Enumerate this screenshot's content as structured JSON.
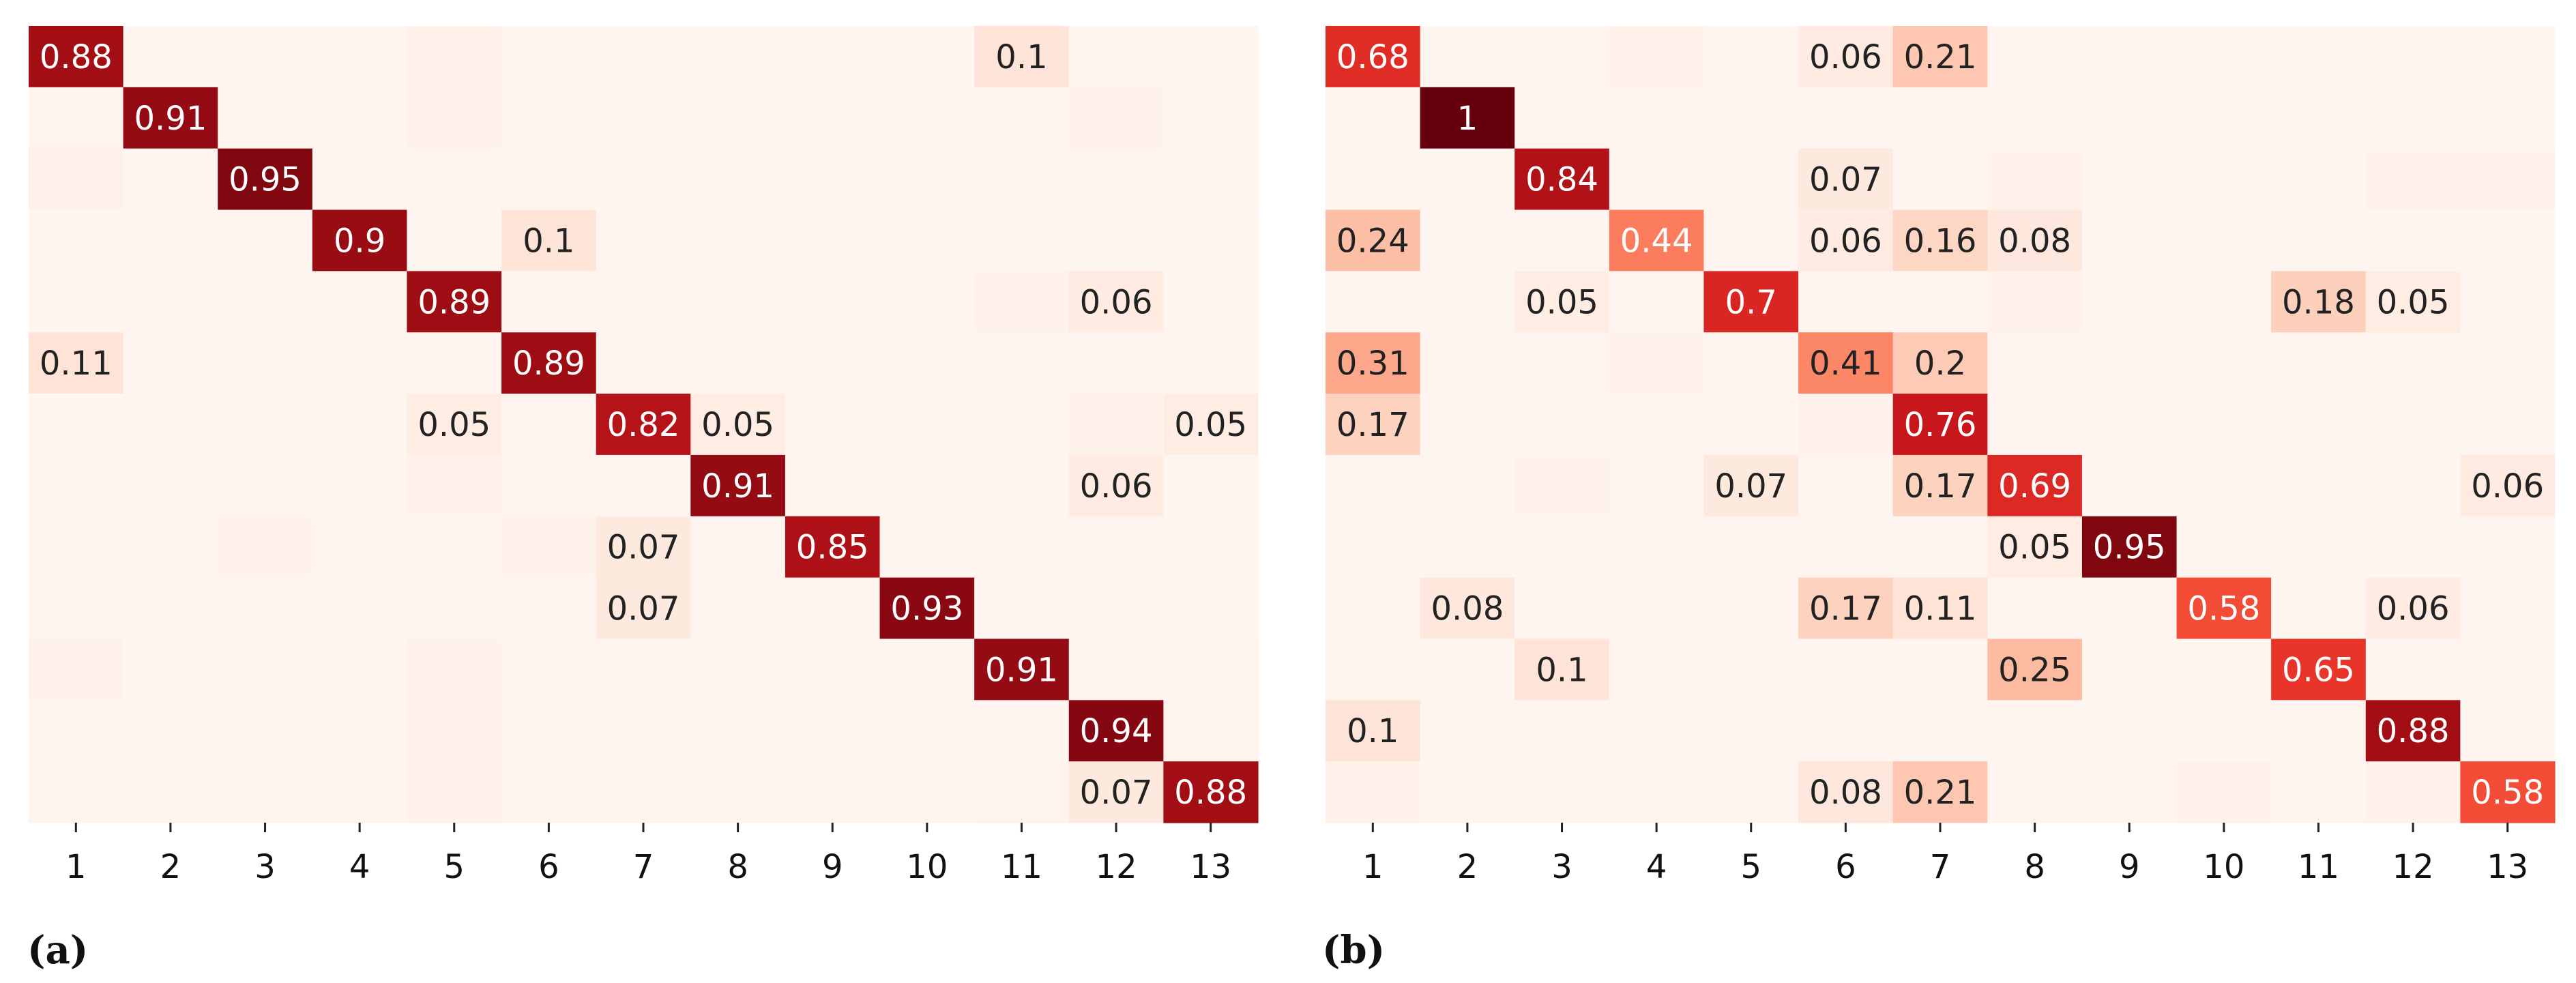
{
  "chart_data": [
    {
      "type": "heatmap",
      "panel_label": "(a)",
      "categories": [
        "1",
        "2",
        "3",
        "4",
        "5",
        "6",
        "7",
        "8",
        "9",
        "10",
        "11",
        "12",
        "13"
      ],
      "colormap": "Reds",
      "vmin": 0,
      "vmax": 1,
      "annotate_min": 0.05,
      "matrix": [
        [
          0.88,
          0,
          0,
          0,
          0.02,
          0,
          0,
          0,
          0,
          0,
          0.1,
          0,
          0
        ],
        [
          0.01,
          0.91,
          0,
          0,
          0.02,
          0,
          0.01,
          0.01,
          0,
          0,
          0,
          0.02,
          0
        ],
        [
          0.03,
          0,
          0.95,
          0,
          0,
          0,
          0,
          0,
          0,
          0,
          0,
          0,
          0
        ],
        [
          0,
          0,
          0,
          0.9,
          0,
          0.1,
          0,
          0,
          0,
          0,
          0,
          0,
          0
        ],
        [
          0,
          0,
          0,
          0,
          0.89,
          0,
          0,
          0,
          0,
          0,
          0.02,
          0.06,
          0
        ],
        [
          0.11,
          0,
          0,
          0,
          0,
          0.89,
          0,
          0,
          0,
          0,
          0,
          0,
          0
        ],
        [
          0,
          0,
          0,
          0,
          0.05,
          0,
          0.82,
          0.05,
          0,
          0,
          0,
          0.02,
          0.05
        ],
        [
          0,
          0,
          0,
          0,
          0.02,
          0,
          0,
          0.91,
          0,
          0,
          0,
          0.06,
          0
        ],
        [
          0,
          0,
          0.02,
          0,
          0,
          0.02,
          0.07,
          0,
          0.85,
          0,
          0,
          0,
          0
        ],
        [
          0,
          0,
          0,
          0,
          0,
          0,
          0.07,
          0,
          0,
          0.93,
          0,
          0,
          0
        ],
        [
          0.02,
          0,
          0,
          0,
          0.02,
          0,
          0,
          0,
          0,
          0,
          0.91,
          0,
          0.01
        ],
        [
          0,
          0,
          0,
          0,
          0.02,
          0,
          0,
          0,
          0,
          0,
          0,
          0.94,
          0.01
        ],
        [
          0,
          0,
          0,
          0,
          0.02,
          0,
          0,
          0,
          0,
          0,
          0.01,
          0.07,
          0.88
        ]
      ]
    },
    {
      "type": "heatmap",
      "panel_label": "(b)",
      "categories": [
        "1",
        "2",
        "3",
        "4",
        "5",
        "6",
        "7",
        "8",
        "9",
        "10",
        "11",
        "12",
        "13"
      ],
      "colormap": "Reds",
      "vmin": 0,
      "vmax": 1,
      "annotate_min": 0.05,
      "matrix": [
        [
          0.68,
          0,
          0,
          0.02,
          0,
          0.06,
          0.21,
          0,
          0,
          0,
          0,
          0,
          0
        ],
        [
          0,
          1.0,
          0,
          0,
          0,
          0,
          0,
          0,
          0,
          0,
          0,
          0,
          0
        ],
        [
          0,
          0,
          0.84,
          0,
          0,
          0.07,
          0,
          0.02,
          0,
          0,
          0,
          0.02,
          0.02
        ],
        [
          0.24,
          0,
          0,
          0.44,
          0,
          0.06,
          0.16,
          0.08,
          0,
          0,
          0,
          0,
          0
        ],
        [
          0,
          0,
          0.05,
          0,
          0.7,
          0,
          0,
          0.02,
          0,
          0,
          0.18,
          0.05,
          0
        ],
        [
          0.31,
          0,
          0,
          0.02,
          0,
          0.41,
          0.2,
          0,
          0,
          0,
          0.01,
          0.01,
          0
        ],
        [
          0.17,
          0,
          0,
          0.01,
          0,
          0.02,
          0.76,
          0,
          0,
          0,
          0,
          0,
          0
        ],
        [
          0,
          0,
          0.02,
          0,
          0.07,
          0,
          0.17,
          0.69,
          0,
          0,
          0,
          0,
          0.06
        ],
        [
          0,
          0,
          0,
          0,
          0,
          0,
          0,
          0.05,
          0.95,
          0,
          0,
          0,
          0
        ],
        [
          0,
          0.08,
          0,
          0,
          0,
          0.17,
          0.11,
          0,
          0,
          0.58,
          0,
          0.06,
          0
        ],
        [
          0,
          0,
          0.1,
          0,
          0,
          0,
          0,
          0.25,
          0,
          0,
          0.65,
          0,
          0
        ],
        [
          0.1,
          0,
          0,
          0,
          0,
          0,
          0,
          0,
          0,
          0,
          0,
          0.88,
          0
        ],
        [
          0.02,
          0,
          0,
          0,
          0,
          0.08,
          0.21,
          0,
          0,
          0.02,
          0,
          0.02,
          0.58
        ]
      ]
    }
  ]
}
